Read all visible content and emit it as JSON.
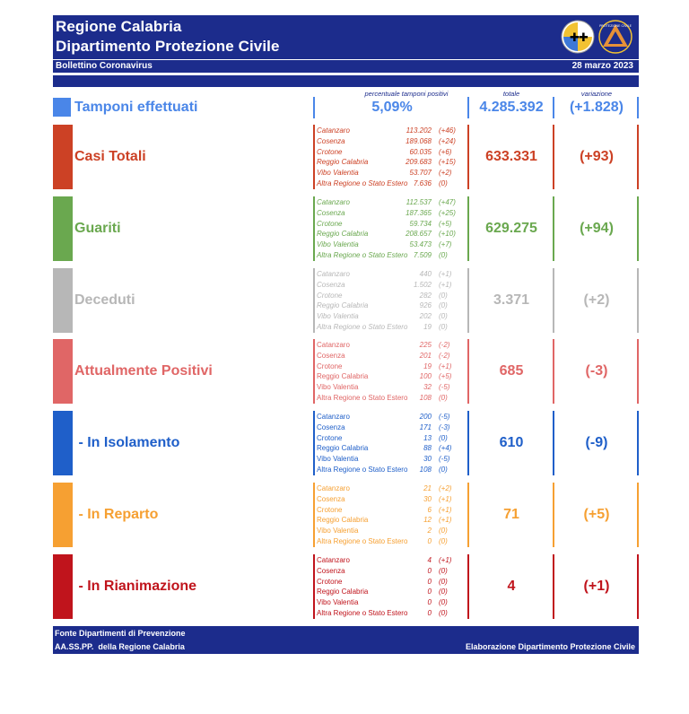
{
  "header": {
    "title_line1": "Regione Calabria",
    "title_line2": "Dipartimento Protezione Civile",
    "bulletin": "Bollettino Coronavirus",
    "date": "28 marzo 2023",
    "logo_text": "PROTEZIONE CIVILE"
  },
  "columns": {
    "pct_header": "percentuale tamponi positivi",
    "total_header": "totale",
    "variation_header": "variazione"
  },
  "tamponi": {
    "label": "Tamponi effettuati",
    "percent": "5,09%",
    "total": "4.285.392",
    "variation": "(+1.828)",
    "color": "#4a86e8"
  },
  "sections": [
    {
      "key": "casi",
      "label": "Casi Totali",
      "color": "#cc4125",
      "total": "633.331",
      "variation": "(+93)",
      "rows": [
        {
          "province": "Catanzaro",
          "value": "113.202",
          "delta": "(+46)"
        },
        {
          "province": "Cosenza",
          "value": "189.068",
          "delta": "(+24)"
        },
        {
          "province": "Crotone",
          "value": "60.035",
          "delta": "(+6)"
        },
        {
          "province": "Reggio Calabria",
          "value": "209.683",
          "delta": "(+15)"
        },
        {
          "province": "Vibo Valentia",
          "value": "53.707",
          "delta": "(+2)"
        },
        {
          "province": "Altra Regione o Stato Estero",
          "value": "7.636",
          "delta": "(0)"
        }
      ]
    },
    {
      "key": "guariti",
      "label": "Guariti",
      "color": "#6aa84f",
      "total": "629.275",
      "variation": "(+94)",
      "rows": [
        {
          "province": "Catanzaro",
          "value": "112.537",
          "delta": "(+47)"
        },
        {
          "province": "Cosenza",
          "value": "187.365",
          "delta": "(+25)"
        },
        {
          "province": "Crotone",
          "value": "59.734",
          "delta": "(+5)"
        },
        {
          "province": "Reggio Calabria",
          "value": "208.657",
          "delta": "(+10)"
        },
        {
          "province": "Vibo Valentia",
          "value": "53.473",
          "delta": "(+7)"
        },
        {
          "province": "Altra Regione o Stato Estero",
          "value": "7.509",
          "delta": "(0)"
        }
      ]
    },
    {
      "key": "deceduti",
      "label": "Deceduti",
      "color": "#b7b7b7",
      "total": "3.371",
      "variation": "(+2)",
      "rows": [
        {
          "province": "Catanzaro",
          "value": "440",
          "delta": "(+1)"
        },
        {
          "province": "Cosenza",
          "value": "1.502",
          "delta": "(+1)"
        },
        {
          "province": "Crotone",
          "value": "282",
          "delta": "(0)"
        },
        {
          "province": "Reggio Calabria",
          "value": "926",
          "delta": "(0)"
        },
        {
          "province": "Vibo Valentia",
          "value": "202",
          "delta": "(0)"
        },
        {
          "province": "Altra Regione o Stato Estero",
          "value": "19",
          "delta": "(0)"
        }
      ]
    },
    {
      "key": "positivi",
      "label": "Attualmente Positivi",
      "color": "#e06666",
      "total": "685",
      "variation": "(-3)",
      "rows": [
        {
          "province": "Catanzaro",
          "value": "225",
          "delta": "(-2)"
        },
        {
          "province": "Cosenza",
          "value": "201",
          "delta": "(-2)"
        },
        {
          "province": "Crotone",
          "value": "19",
          "delta": "(+1)"
        },
        {
          "province": "Reggio Calabria",
          "value": "100",
          "delta": "(+5)"
        },
        {
          "province": "Vibo Valentia",
          "value": "32",
          "delta": "(-5)"
        },
        {
          "province": "Altra Regione o Stato Estero",
          "value": "108",
          "delta": "(0)"
        }
      ]
    },
    {
      "key": "isolamento",
      "label": " - In Isolamento",
      "color": "#1f5fc9",
      "total": "610",
      "variation": "(-9)",
      "rows": [
        {
          "province": "Catanzaro",
          "value": "200",
          "delta": "(-5)"
        },
        {
          "province": "Cosenza",
          "value": "171",
          "delta": "(-3)"
        },
        {
          "province": "Crotone",
          "value": "13",
          "delta": "(0)"
        },
        {
          "province": "Reggio Calabria",
          "value": "88",
          "delta": "(+4)"
        },
        {
          "province": "Vibo Valentia",
          "value": "30",
          "delta": "(-5)"
        },
        {
          "province": "Altra Regione o Stato Estero",
          "value": "108",
          "delta": "(0)"
        }
      ]
    },
    {
      "key": "reparto",
      "label": " - In Reparto",
      "color": "#f6a032",
      "total": "71",
      "variation": "(+5)",
      "rows": [
        {
          "province": "Catanzaro",
          "value": "21",
          "delta": "(+2)"
        },
        {
          "province": "Cosenza",
          "value": "30",
          "delta": "(+1)"
        },
        {
          "province": "Crotone",
          "value": "6",
          "delta": "(+1)"
        },
        {
          "province": "Reggio Calabria",
          "value": "12",
          "delta": "(+1)"
        },
        {
          "province": "Vibo Valentia",
          "value": "2",
          "delta": "(0)"
        },
        {
          "province": "Altra Regione o Stato Estero",
          "value": "0",
          "delta": "(0)"
        }
      ]
    },
    {
      "key": "rianimazione",
      "label": " - In Rianimazione",
      "color": "#c0141c",
      "total": "4",
      "variation": "(+1)",
      "rows": [
        {
          "province": "Catanzaro",
          "value": "4",
          "delta": "(+1)"
        },
        {
          "province": "Cosenza",
          "value": "0",
          "delta": "(0)"
        },
        {
          "province": "Crotone",
          "value": "0",
          "delta": "(0)"
        },
        {
          "province": "Reggio Calabria",
          "value": "0",
          "delta": "(0)"
        },
        {
          "province": "Vibo Valentia",
          "value": "0",
          "delta": "(0)"
        },
        {
          "province": "Altra Regione o Stato Estero",
          "value": "0",
          "delta": "(0)"
        }
      ]
    }
  ],
  "footer": {
    "line1": "Fonte Dipartimenti di Prevenzione",
    "line2": "AA.SS.PP.  della Regione Calabria",
    "credit": "Elaborazione Dipartimento Protezione Civile"
  }
}
